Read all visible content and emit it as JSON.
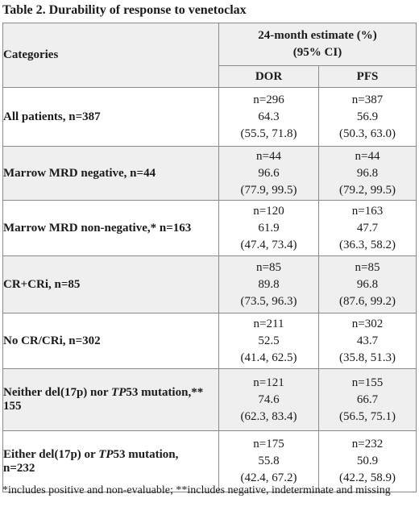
{
  "title": "Table 2. Durability of response to venetoclax",
  "header": {
    "categories": "Categories",
    "estimate_line1": "24-month estimate (%)",
    "estimate_line2": "(95% CI)",
    "dor": "DOR",
    "pfs": "PFS"
  },
  "rows": [
    {
      "label": "All patients, n=387",
      "dor": {
        "n": "n=296",
        "est": "64.3",
        "ci": "(55.5, 71.8)"
      },
      "pfs": {
        "n": "n=387",
        "est": "56.9",
        "ci": "(50.3, 63.0)"
      }
    },
    {
      "label": "Marrow MRD negative, n=44",
      "dor": {
        "n": "n=44",
        "est": "96.6",
        "ci": "(77.9, 99.5)"
      },
      "pfs": {
        "n": "n=44",
        "est": "96.8",
        "ci": "(79.2, 99.5)"
      }
    },
    {
      "label": "Marrow MRD non-negative,* n=163",
      "dor": {
        "n": "n=120",
        "est": "61.9",
        "ci": "(47.4, 73.4)"
      },
      "pfs": {
        "n": "n=163",
        "est": "47.7",
        "ci": "(36.3, 58.2)"
      }
    },
    {
      "label": "CR+CRi, n=85",
      "dor": {
        "n": "n=85",
        "est": "89.8",
        "ci": "(73.5, 96.3)"
      },
      "pfs": {
        "n": "n=85",
        "est": "96.8",
        "ci": "(87.6, 99.2)"
      }
    },
    {
      "label": "No CR/CRi, n=302",
      "dor": {
        "n": "n=211",
        "est": "52.5",
        "ci": "(41.4, 62.5)"
      },
      "pfs": {
        "n": "n=302",
        "est": "43.7",
        "ci": "(35.8, 51.3)"
      }
    },
    {
      "label_a": "Neither del(17p) nor ",
      "label_i": "TP",
      "label_b": "53 mutation,**",
      "label_c": "155",
      "dor": {
        "n": "n=121",
        "est": "74.6",
        "ci": "(62.3, 83.4)"
      },
      "pfs": {
        "n": "n=155",
        "est": "66.7",
        "ci": "(56.5, 75.1)"
      }
    },
    {
      "label_a": "Either del(17p) or ",
      "label_i": "TP",
      "label_b": "53 mutation,",
      "label_c": "n=232",
      "dor": {
        "n": "n=175",
        "est": "55.8",
        "ci": "(42.4, 67.2)"
      },
      "pfs": {
        "n": "n=232",
        "est": "50.9",
        "ci": "(42.2, 58.9)"
      }
    }
  ],
  "footnote": "*includes positive and non-evaluable; **includes negative, indeterminate and missing"
}
